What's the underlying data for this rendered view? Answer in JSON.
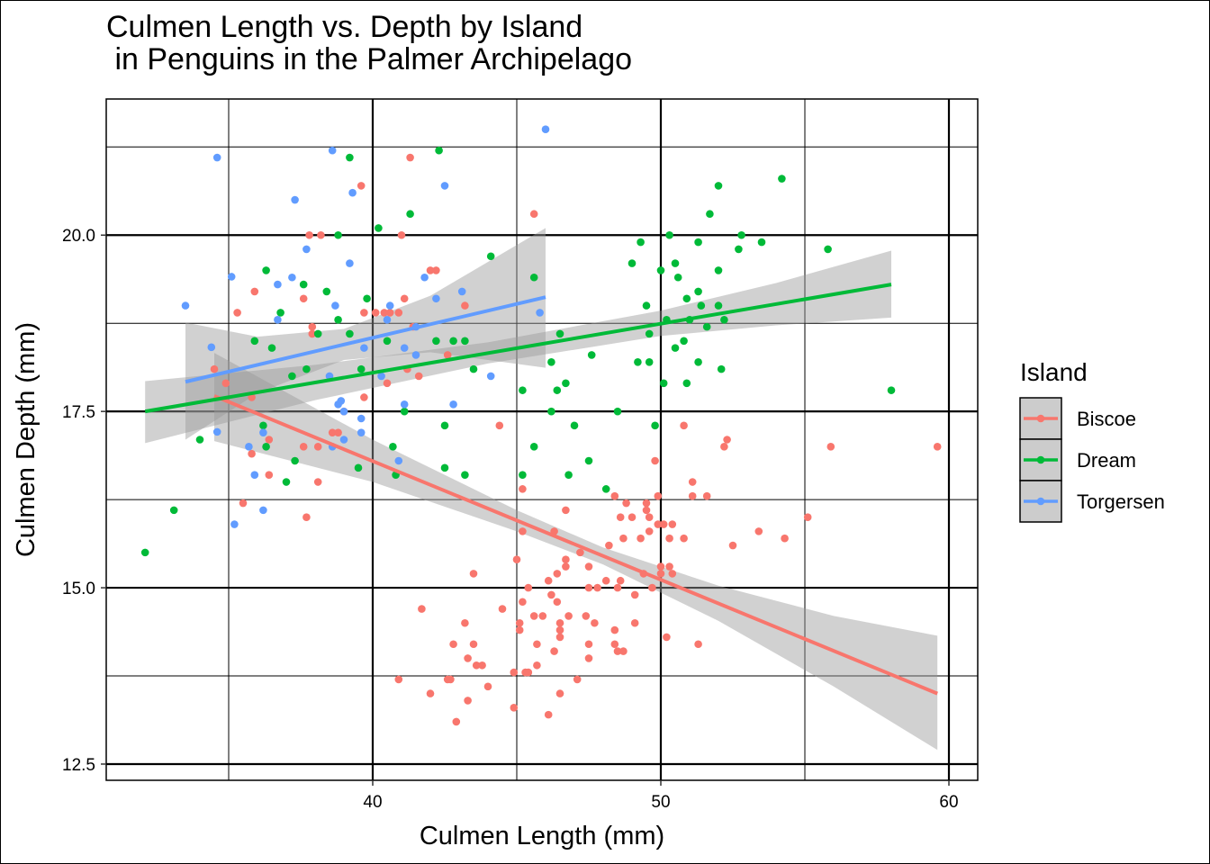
{
  "chart_data": {
    "type": "scatter",
    "title": "Culmen Length vs. Depth by Island\n in Penguins in the Palmer Archipelago",
    "xlabel": "Culmen Length (mm)",
    "ylabel": "Culmen Depth (mm)",
    "xlim": [
      30.75,
      61.0
    ],
    "ylim": [
      12.27,
      21.93
    ],
    "x_ticks": [
      40,
      50,
      60
    ],
    "x_tick_labels": [
      "40",
      "50",
      "60"
    ],
    "x_minor_ticks": [
      35,
      45,
      55
    ],
    "y_ticks": [
      12.5,
      15.0,
      17.5,
      20.0
    ],
    "y_tick_labels": [
      "12.5",
      "15.0",
      "17.5",
      "20.0"
    ],
    "y_minor_ticks": [
      13.75,
      16.25,
      18.75,
      21.25
    ],
    "grid": true,
    "legend": {
      "title": "Island",
      "position": "right"
    },
    "series": [
      {
        "name": "Biscoe",
        "color": "#F8766D",
        "fit": {
          "x": [
            34.5,
            59.6
          ],
          "y": [
            17.72,
            13.5
          ]
        },
        "ribbon": [
          [
            34.5,
            17.08,
            18.33
          ],
          [
            40,
            16.5,
            17.1
          ],
          [
            45,
            15.8,
            16.1
          ],
          [
            48,
            15.33,
            15.57
          ],
          [
            52,
            14.53,
            15.03
          ],
          [
            56,
            13.6,
            14.6
          ],
          [
            59.6,
            12.7,
            14.32
          ]
        ],
        "points": [
          [
            34.5,
            18.1
          ],
          [
            35.3,
            18.9
          ],
          [
            35.9,
            19.2
          ],
          [
            35.5,
            16.2
          ],
          [
            35.8,
            16.9
          ],
          [
            36.4,
            17.1
          ],
          [
            36.4,
            16.6
          ],
          [
            37.6,
            17.0
          ],
          [
            37.6,
            19.1
          ],
          [
            37.7,
            16.0
          ],
          [
            37.8,
            20.0
          ],
          [
            38.2,
            20.0
          ],
          [
            38.1,
            17.0
          ],
          [
            38.1,
            16.5
          ],
          [
            38.6,
            17.2
          ],
          [
            38.8,
            17.2
          ],
          [
            39.0,
            17.5
          ],
          [
            39.6,
            20.7
          ],
          [
            39.7,
            18.9
          ],
          [
            39.7,
            17.7
          ],
          [
            40.1,
            18.9
          ],
          [
            40.5,
            17.9
          ],
          [
            40.6,
            18.9
          ],
          [
            40.9,
            13.7
          ],
          [
            41.0,
            20.0
          ],
          [
            41.1,
            19.1
          ],
          [
            41.3,
            21.1
          ],
          [
            41.6,
            18.0
          ],
          [
            41.7,
            14.7
          ],
          [
            42.0,
            13.5
          ],
          [
            42.0,
            19.5
          ],
          [
            42.2,
            19.5
          ],
          [
            42.6,
            13.7
          ],
          [
            42.7,
            13.7
          ],
          [
            42.8,
            14.2
          ],
          [
            42.9,
            13.1
          ],
          [
            43.2,
            14.5
          ],
          [
            43.3,
            14.0
          ],
          [
            43.3,
            13.4
          ],
          [
            43.5,
            15.2
          ],
          [
            43.5,
            14.2
          ],
          [
            43.6,
            13.9
          ],
          [
            43.8,
            13.9
          ],
          [
            44.0,
            13.6
          ],
          [
            44.4,
            17.3
          ],
          [
            44.5,
            14.7
          ],
          [
            44.9,
            13.8
          ],
          [
            44.9,
            13.3
          ],
          [
            45.0,
            15.4
          ],
          [
            45.1,
            14.5
          ],
          [
            45.1,
            14.4
          ],
          [
            45.2,
            16.4
          ],
          [
            45.2,
            15.8
          ],
          [
            45.2,
            14.8
          ],
          [
            45.3,
            13.8
          ],
          [
            45.4,
            13.8
          ],
          [
            45.4,
            15.0
          ],
          [
            45.6,
            20.3
          ],
          [
            45.6,
            14.6
          ],
          [
            45.7,
            13.9
          ],
          [
            45.7,
            14.2
          ],
          [
            45.9,
            14.6
          ],
          [
            46.1,
            13.2
          ],
          [
            46.1,
            15.1
          ],
          [
            46.2,
            14.9
          ],
          [
            46.3,
            14.1
          ],
          [
            46.3,
            15.8
          ],
          [
            46.4,
            15.2
          ],
          [
            46.4,
            14.8
          ],
          [
            46.5,
            14.4
          ],
          [
            46.5,
            14.5
          ],
          [
            46.5,
            13.5
          ],
          [
            46.5,
            14.3
          ],
          [
            46.7,
            15.4
          ],
          [
            46.7,
            16.1
          ],
          [
            46.7,
            15.3
          ],
          [
            46.8,
            14.6
          ],
          [
            47.1,
            13.7
          ],
          [
            47.2,
            15.5
          ],
          [
            47.4,
            14.6
          ],
          [
            47.5,
            14.2
          ],
          [
            47.5,
            14.0
          ],
          [
            47.5,
            15.3
          ],
          [
            47.5,
            15.0
          ],
          [
            47.7,
            14.5
          ],
          [
            47.8,
            15.0
          ],
          [
            48.1,
            15.1
          ],
          [
            48.2,
            15.6
          ],
          [
            48.4,
            16.3
          ],
          [
            48.4,
            14.4
          ],
          [
            48.5,
            15.0
          ],
          [
            48.4,
            14.2
          ],
          [
            48.5,
            14.1
          ],
          [
            48.6,
            16.0
          ],
          [
            48.6,
            15.1
          ],
          [
            48.7,
            14.1
          ],
          [
            48.7,
            15.7
          ],
          [
            48.8,
            16.2
          ],
          [
            49.0,
            16.0
          ],
          [
            49.1,
            14.5
          ],
          [
            49.1,
            14.9
          ],
          [
            49.3,
            15.7
          ],
          [
            49.4,
            15.2
          ],
          [
            49.5,
            16.2
          ],
          [
            49.5,
            16.1
          ],
          [
            49.6,
            16.0
          ],
          [
            49.6,
            15.8
          ],
          [
            49.7,
            15.0
          ],
          [
            49.8,
            16.8
          ],
          [
            49.9,
            15.9
          ],
          [
            49.9,
            16.3
          ],
          [
            50.0,
            15.3
          ],
          [
            50.0,
            15.2
          ],
          [
            50.1,
            15.9
          ],
          [
            50.2,
            14.3
          ],
          [
            50.3,
            15.3
          ],
          [
            50.4,
            15.2
          ],
          [
            50.4,
            15.9
          ],
          [
            50.3,
            15.7
          ],
          [
            50.8,
            17.3
          ],
          [
            50.8,
            15.7
          ],
          [
            51.1,
            16.5
          ],
          [
            51.1,
            16.3
          ],
          [
            51.3,
            14.2
          ],
          [
            51.6,
            16.3
          ],
          [
            52.2,
            17.0
          ],
          [
            52.3,
            17.1
          ],
          [
            52.5,
            15.6
          ],
          [
            53.4,
            15.8
          ],
          [
            54.3,
            15.7
          ],
          [
            55.1,
            16.0
          ],
          [
            55.9,
            17.0
          ],
          [
            59.6,
            17.0
          ],
          [
            40.4,
            18.9
          ],
          [
            41.4,
            18.7
          ],
          [
            40.9,
            18.9
          ],
          [
            41.2,
            18.1
          ],
          [
            42.6,
            18.3
          ],
          [
            43.2,
            19.0
          ],
          [
            37.9,
            18.7
          ],
          [
            37.9,
            18.6
          ],
          [
            34.9,
            17.9
          ],
          [
            35.8,
            17.7
          ]
        ]
      },
      {
        "name": "Dream",
        "color": "#00BA38",
        "fit": {
          "x": [
            32.1,
            58.0
          ],
          "y": [
            17.5,
            19.3
          ]
        },
        "ribbon": [
          [
            32.1,
            17.05,
            17.93
          ],
          [
            38,
            17.66,
            18.16
          ],
          [
            44,
            18.18,
            18.48
          ],
          [
            50,
            18.57,
            18.93
          ],
          [
            54,
            18.72,
            19.32
          ],
          [
            58,
            18.83,
            19.78
          ]
        ],
        "points": [
          [
            32.1,
            15.5
          ],
          [
            33.1,
            16.1
          ],
          [
            34.0,
            17.1
          ],
          [
            36.3,
            19.5
          ],
          [
            35.9,
            18.5
          ],
          [
            36.5,
            18.4
          ],
          [
            36.8,
            18.9
          ],
          [
            36.2,
            17.3
          ],
          [
            36.3,
            17.0
          ],
          [
            37.0,
            16.5
          ],
          [
            37.3,
            16.8
          ],
          [
            37.2,
            18.0
          ],
          [
            37.6,
            19.3
          ],
          [
            38.1,
            18.6
          ],
          [
            38.4,
            19.2
          ],
          [
            38.8,
            20.0
          ],
          [
            39.2,
            21.1
          ],
          [
            39.2,
            18.6
          ],
          [
            39.8,
            19.1
          ],
          [
            39.6,
            18.1
          ],
          [
            39.5,
            16.7
          ],
          [
            40.2,
            20.1
          ],
          [
            40.7,
            17.0
          ],
          [
            40.8,
            16.6
          ],
          [
            41.1,
            17.5
          ],
          [
            41.3,
            20.3
          ],
          [
            42.3,
            21.2
          ],
          [
            42.5,
            17.3
          ],
          [
            42.5,
            16.7
          ],
          [
            43.2,
            16.6
          ],
          [
            43.5,
            18.1
          ],
          [
            44.1,
            19.7
          ],
          [
            45.2,
            17.8
          ],
          [
            45.2,
            16.6
          ],
          [
            45.6,
            19.4
          ],
          [
            45.6,
            17.0
          ],
          [
            46.2,
            18.2
          ],
          [
            46.2,
            17.5
          ],
          [
            46.5,
            18.6
          ],
          [
            46.4,
            17.8
          ],
          [
            46.7,
            17.9
          ],
          [
            46.8,
            16.6
          ],
          [
            47.0,
            17.3
          ],
          [
            47.5,
            16.8
          ],
          [
            47.6,
            18.3
          ],
          [
            48.1,
            16.4
          ],
          [
            48.5,
            17.5
          ],
          [
            49.0,
            19.6
          ],
          [
            49.2,
            18.2
          ],
          [
            49.3,
            19.9
          ],
          [
            49.5,
            19.0
          ],
          [
            49.6,
            18.2
          ],
          [
            49.6,
            18.6
          ],
          [
            49.8,
            17.3
          ],
          [
            50.0,
            19.5
          ],
          [
            50.1,
            17.9
          ],
          [
            50.2,
            18.8
          ],
          [
            50.3,
            20.0
          ],
          [
            50.5,
            19.6
          ],
          [
            50.5,
            18.4
          ],
          [
            50.6,
            19.4
          ],
          [
            50.8,
            18.5
          ],
          [
            50.9,
            19.1
          ],
          [
            50.9,
            17.9
          ],
          [
            51.0,
            18.8
          ],
          [
            51.3,
            19.9
          ],
          [
            51.3,
            19.2
          ],
          [
            51.3,
            18.2
          ],
          [
            51.4,
            19.0
          ],
          [
            51.6,
            18.7
          ],
          [
            51.7,
            20.3
          ],
          [
            52.0,
            19.5
          ],
          [
            52.1,
            18.1
          ],
          [
            52.0,
            19.0
          ],
          [
            52.0,
            20.7
          ],
          [
            52.2,
            18.8
          ],
          [
            52.7,
            19.8
          ],
          [
            52.8,
            20.0
          ],
          [
            53.5,
            19.9
          ],
          [
            54.2,
            20.8
          ],
          [
            55.8,
            19.8
          ],
          [
            58.0,
            17.8
          ],
          [
            38.8,
            18.8
          ],
          [
            37.7,
            18.1
          ],
          [
            40.5,
            18.5
          ],
          [
            42.2,
            18.5
          ],
          [
            42.8,
            18.5
          ],
          [
            43.2,
            18.5
          ]
        ]
      },
      {
        "name": "Torgersen",
        "color": "#619CFF",
        "fit": {
          "x": [
            33.5,
            46.0
          ],
          "y": [
            17.92,
            19.12
          ]
        },
        "ribbon": [
          [
            33.5,
            17.1,
            18.76
          ],
          [
            36,
            17.76,
            18.56
          ],
          [
            39,
            18.23,
            18.67
          ],
          [
            42,
            18.34,
            19.14
          ],
          [
            46,
            18.12,
            20.1
          ]
        ],
        "points": [
          [
            33.5,
            19.0
          ],
          [
            34.6,
            21.1
          ],
          [
            35.1,
            19.41
          ],
          [
            34.4,
            18.41
          ],
          [
            34.6,
            17.21
          ],
          [
            35.7,
            17.0
          ],
          [
            35.9,
            16.6
          ],
          [
            35.2,
            15.9
          ],
          [
            36.2,
            16.1
          ],
          [
            36.2,
            17.2
          ],
          [
            36.7,
            19.3
          ],
          [
            36.7,
            18.8
          ],
          [
            37.3,
            20.5
          ],
          [
            37.2,
            19.4
          ],
          [
            37.7,
            19.8
          ],
          [
            38.6,
            21.2
          ],
          [
            39.3,
            20.6
          ],
          [
            39.2,
            19.6
          ],
          [
            38.7,
            19.0
          ],
          [
            38.8,
            17.6
          ],
          [
            38.5,
            18.0
          ],
          [
            38.6,
            17.0
          ],
          [
            39.0,
            17.5
          ],
          [
            39.6,
            17.4
          ],
          [
            39.7,
            18.4
          ],
          [
            39.6,
            17.2
          ],
          [
            38.9,
            17.65
          ],
          [
            39.0,
            17.1
          ],
          [
            40.3,
            18.0
          ],
          [
            40.6,
            19.0
          ],
          [
            41.1,
            18.4
          ],
          [
            41.5,
            18.3
          ],
          [
            41.8,
            19.4
          ],
          [
            41.1,
            17.6
          ],
          [
            40.9,
            16.8
          ],
          [
            42.5,
            20.7
          ],
          [
            42.2,
            19.1
          ],
          [
            43.1,
            19.2
          ],
          [
            42.8,
            17.6
          ],
          [
            44.1,
            18.0
          ],
          [
            46.0,
            21.5
          ],
          [
            45.8,
            18.9
          ],
          [
            41.5,
            18.7
          ],
          [
            40.5,
            18.8
          ]
        ]
      }
    ]
  }
}
